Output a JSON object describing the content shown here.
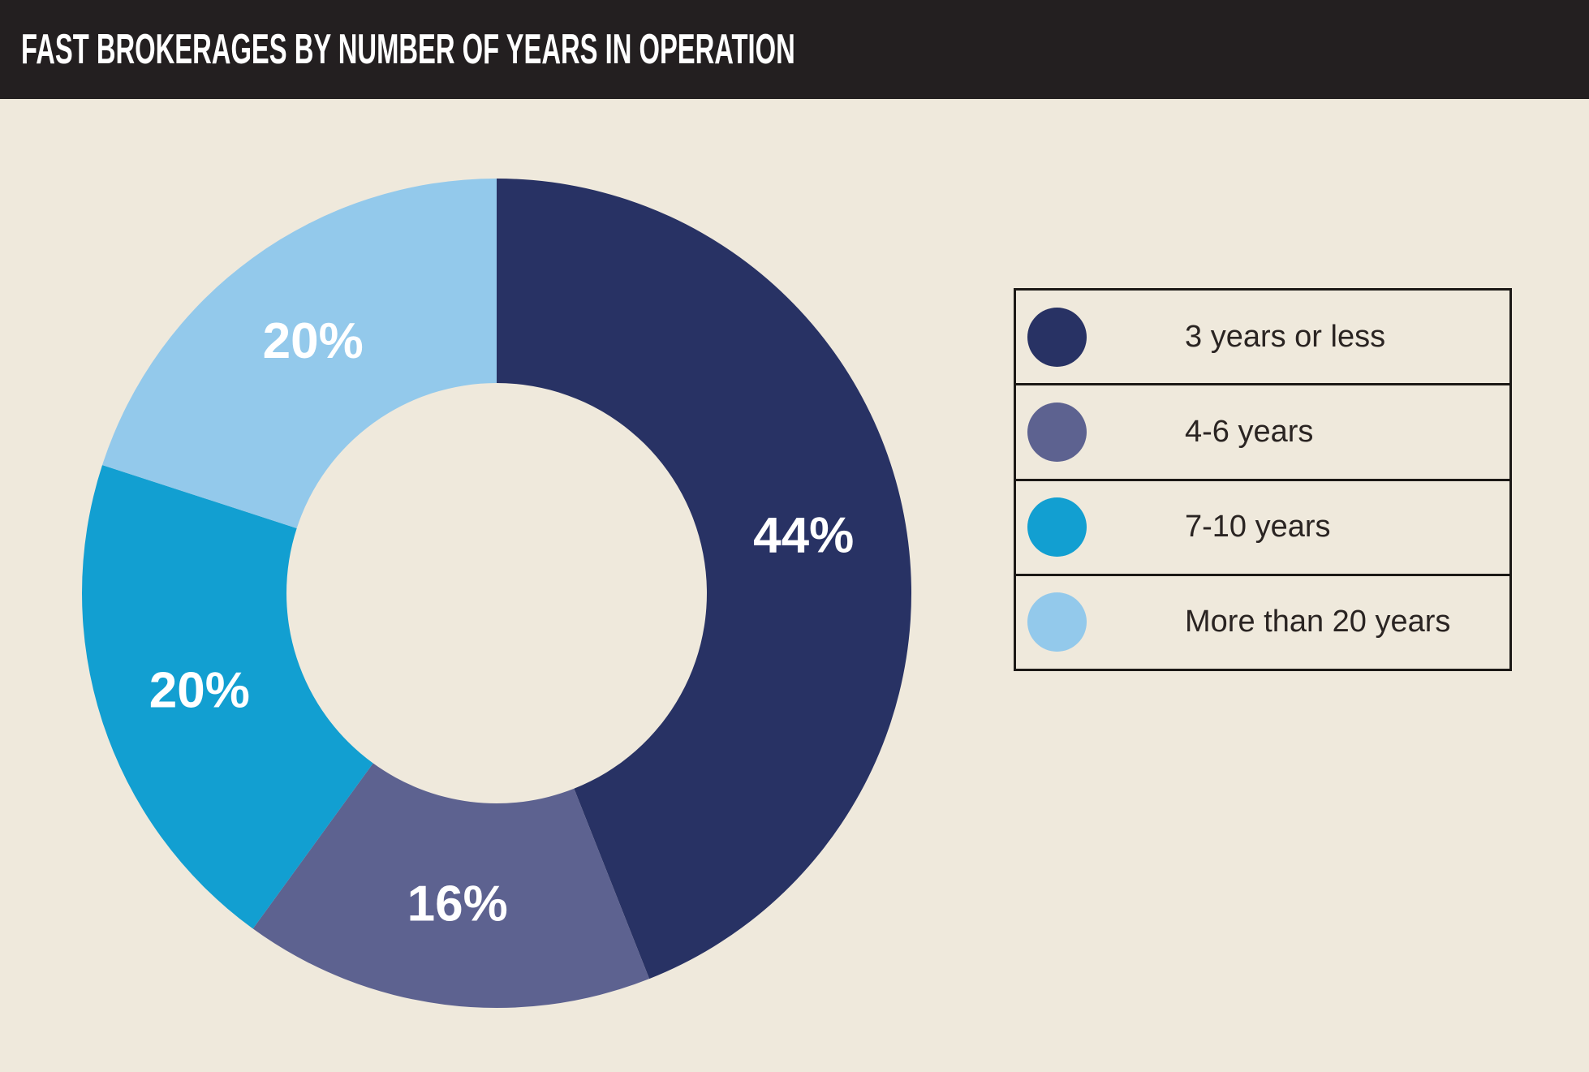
{
  "header": {
    "title": "FAST BROKERAGES BY NUMBER OF YEARS IN OPERATION"
  },
  "chart_data": {
    "type": "pie",
    "subtype": "donut",
    "title": "FAST BROKERAGES BY NUMBER OF YEARS IN OPERATION",
    "categories": [
      "3 years or less",
      "4-6 years",
      "7-10 years",
      "More than 20 years"
    ],
    "values": [
      44,
      16,
      20,
      20
    ],
    "labels": [
      "44%",
      "16%",
      "20%",
      "20%"
    ],
    "colors": [
      "#283264",
      "#5d6290",
      "#129fd1",
      "#93c9eb"
    ],
    "start_angle_deg": 0,
    "direction": "clockwise",
    "donut_hole_ratio": 0.51,
    "legend_position": "right"
  },
  "colors": {
    "background": "#efe9dc",
    "header_bg": "#231f20",
    "header_text": "#ffffff",
    "slice_label_text": "#ffffff",
    "legend_text": "#2a2422",
    "legend_border": "#1c1916"
  }
}
